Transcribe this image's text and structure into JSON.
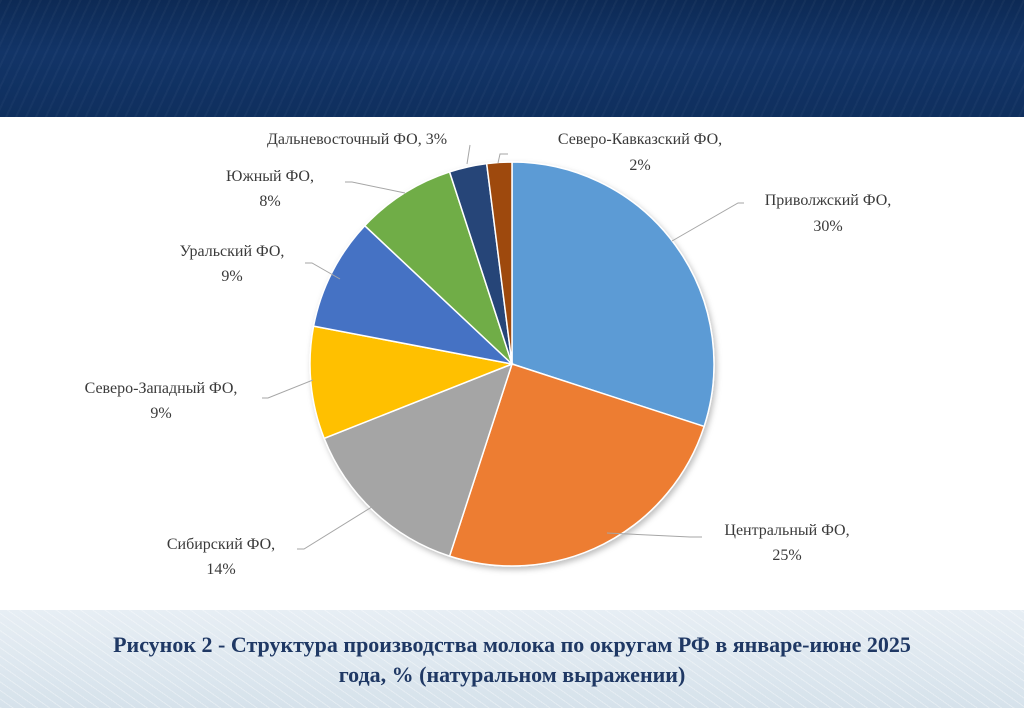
{
  "caption": {
    "line1": "Рисунок 2 - Структура производства молока по округам РФ в январе-июне 2025",
    "line2": "года, % (натуральном выражении)"
  },
  "chart_data": {
    "type": "pie",
    "slices": [
      {
        "name": "Приволжский ФО",
        "value": 30,
        "label": "30%",
        "color": "#5b9bd5"
      },
      {
        "name": "Центральный ФО",
        "value": 25,
        "label": "25%",
        "color": "#ed7d31"
      },
      {
        "name": "Сибирский ФО",
        "value": 14,
        "label": "14%",
        "color": "#a5a5a5"
      },
      {
        "name": "Северо-Западный ФО",
        "value": 9,
        "label": "9%",
        "color": "#ffc000"
      },
      {
        "name": "Уральский ФО",
        "value": 9,
        "label": "9%",
        "color": "#4472c4"
      },
      {
        "name": "Южный ФО",
        "value": 8,
        "label": "8%",
        "color": "#70ad47"
      },
      {
        "name": "Дальневосточный ФО",
        "value": 3,
        "label": "3%",
        "color": "#264478"
      },
      {
        "name": "Северо-Кавказский ФО",
        "value": 2,
        "label": "2%",
        "color": "#9e480e"
      }
    ]
  }
}
